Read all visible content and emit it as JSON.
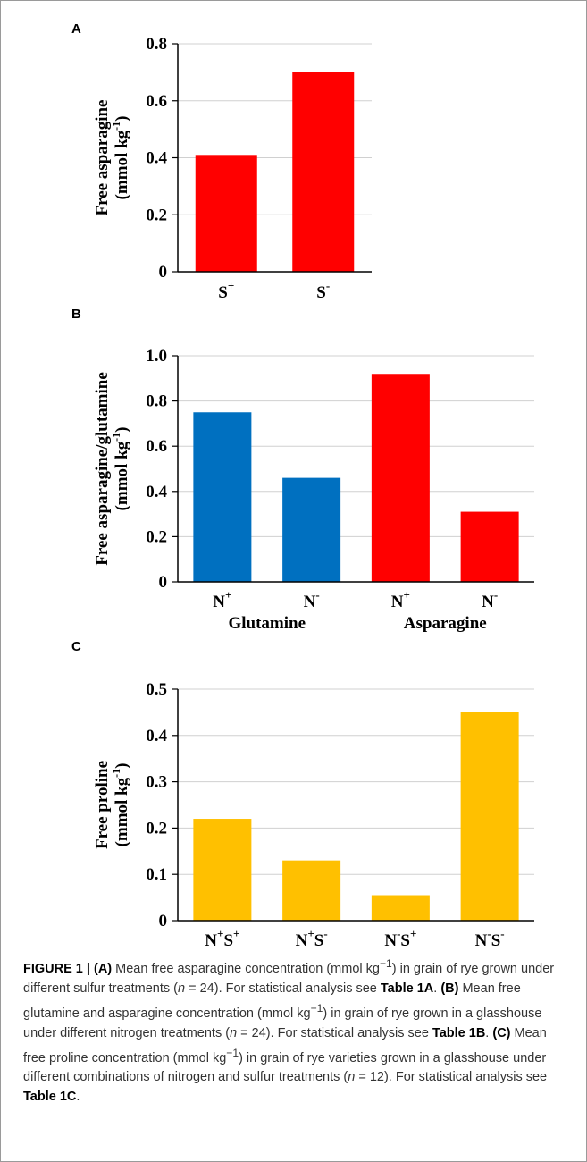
{
  "chart_data": [
    {
      "type": "bar",
      "panel": "A",
      "ylabel_line1": "Free asparagine",
      "ylabel_line2": "(mmol kg",
      "ylabel_sup": "-1",
      "ylabel_close": ")",
      "ylim": [
        0,
        0.8
      ],
      "yticks": [
        "0",
        "0.2",
        "0.4",
        "0.6",
        "0.8"
      ],
      "categories": [
        {
          "base": "S",
          "sup": "+"
        },
        {
          "base": "S",
          "sup": "-"
        }
      ],
      "values": [
        0.41,
        0.7
      ],
      "colors": [
        "#ff0000",
        "#ff0000"
      ],
      "group_labels": [],
      "grid": true
    },
    {
      "type": "bar",
      "panel": "B",
      "ylabel_line1": "Free asparagine/glutamine",
      "ylabel_line2": "(mmol kg",
      "ylabel_sup": "-1",
      "ylabel_close": ")",
      "ylim": [
        0,
        1.0
      ],
      "yticks": [
        "0",
        "0.2",
        "0.4",
        "0.6",
        "0.8",
        "1.0"
      ],
      "categories": [
        {
          "base": "N",
          "sup": "+"
        },
        {
          "base": "N",
          "sup": "-"
        },
        {
          "base": "N",
          "sup": "+"
        },
        {
          "base": "N",
          "sup": "-"
        }
      ],
      "values": [
        0.75,
        0.46,
        0.92,
        0.31
      ],
      "colors": [
        "#0070c0",
        "#0070c0",
        "#ff0000",
        "#ff0000"
      ],
      "group_labels": [
        "Glutamine",
        "Asparagine"
      ],
      "grid": true
    },
    {
      "type": "bar",
      "panel": "C",
      "ylabel_line1": "Free proline",
      "ylabel_line2": "(mmol kg",
      "ylabel_sup": "-1",
      "ylabel_close": ")",
      "ylim": [
        0,
        0.5
      ],
      "yticks": [
        "0",
        "0.1",
        "0.2",
        "0.3",
        "0.4",
        "0.5"
      ],
      "categories": [
        {
          "parts": [
            {
              "t": "N"
            },
            {
              "s": "+"
            },
            {
              "t": "S"
            },
            {
              "s": "+"
            }
          ]
        },
        {
          "parts": [
            {
              "t": "N"
            },
            {
              "s": "+"
            },
            {
              "t": "S"
            },
            {
              "s": "-"
            }
          ]
        },
        {
          "parts": [
            {
              "t": "N"
            },
            {
              "s": "-"
            },
            {
              "t": "S"
            },
            {
              "s": "+"
            }
          ]
        },
        {
          "parts": [
            {
              "t": "N"
            },
            {
              "s": "-"
            },
            {
              "t": "S"
            },
            {
              "s": "-"
            }
          ]
        }
      ],
      "values": [
        0.22,
        0.13,
        0.055,
        0.45
      ],
      "colors": [
        "#ffc000",
        "#ffc000",
        "#ffc000",
        "#ffc000"
      ],
      "group_labels": [],
      "grid": true
    }
  ],
  "caption": {
    "figure_label": "FIGURE 1 |",
    "a_label": "(A)",
    "a_text1": " Mean free asparagine concentration (mmol kg",
    "a_sup": "−1",
    "a_text2": ") in grain of rye grown under different sulfur treatments (",
    "n_letter": "n",
    "a_n": " = 24). For statistical analysis see ",
    "a_table": "Table 1A",
    "dot": ". ",
    "b_label": "(B)",
    "b_text1": " Mean free glutamine and asparagine concentration (mmol kg",
    "b_sup": "−1",
    "b_text2": ") in grain of rye grown in a glasshouse under different nitrogen treatments (",
    "b_n": " = 24). For statistical analysis see ",
    "b_table": "Table 1B",
    "c_label": "(C)",
    "c_text1": " Mean free proline concentration (mmol kg",
    "c_sup": "−1",
    "c_text2": ") in grain of rye varieties grown in a glasshouse under different combinations of nitrogen and sulfur treatments (",
    "c_n": " = 12). For statistical analysis see ",
    "c_table": "Table 1C",
    "end": "."
  }
}
